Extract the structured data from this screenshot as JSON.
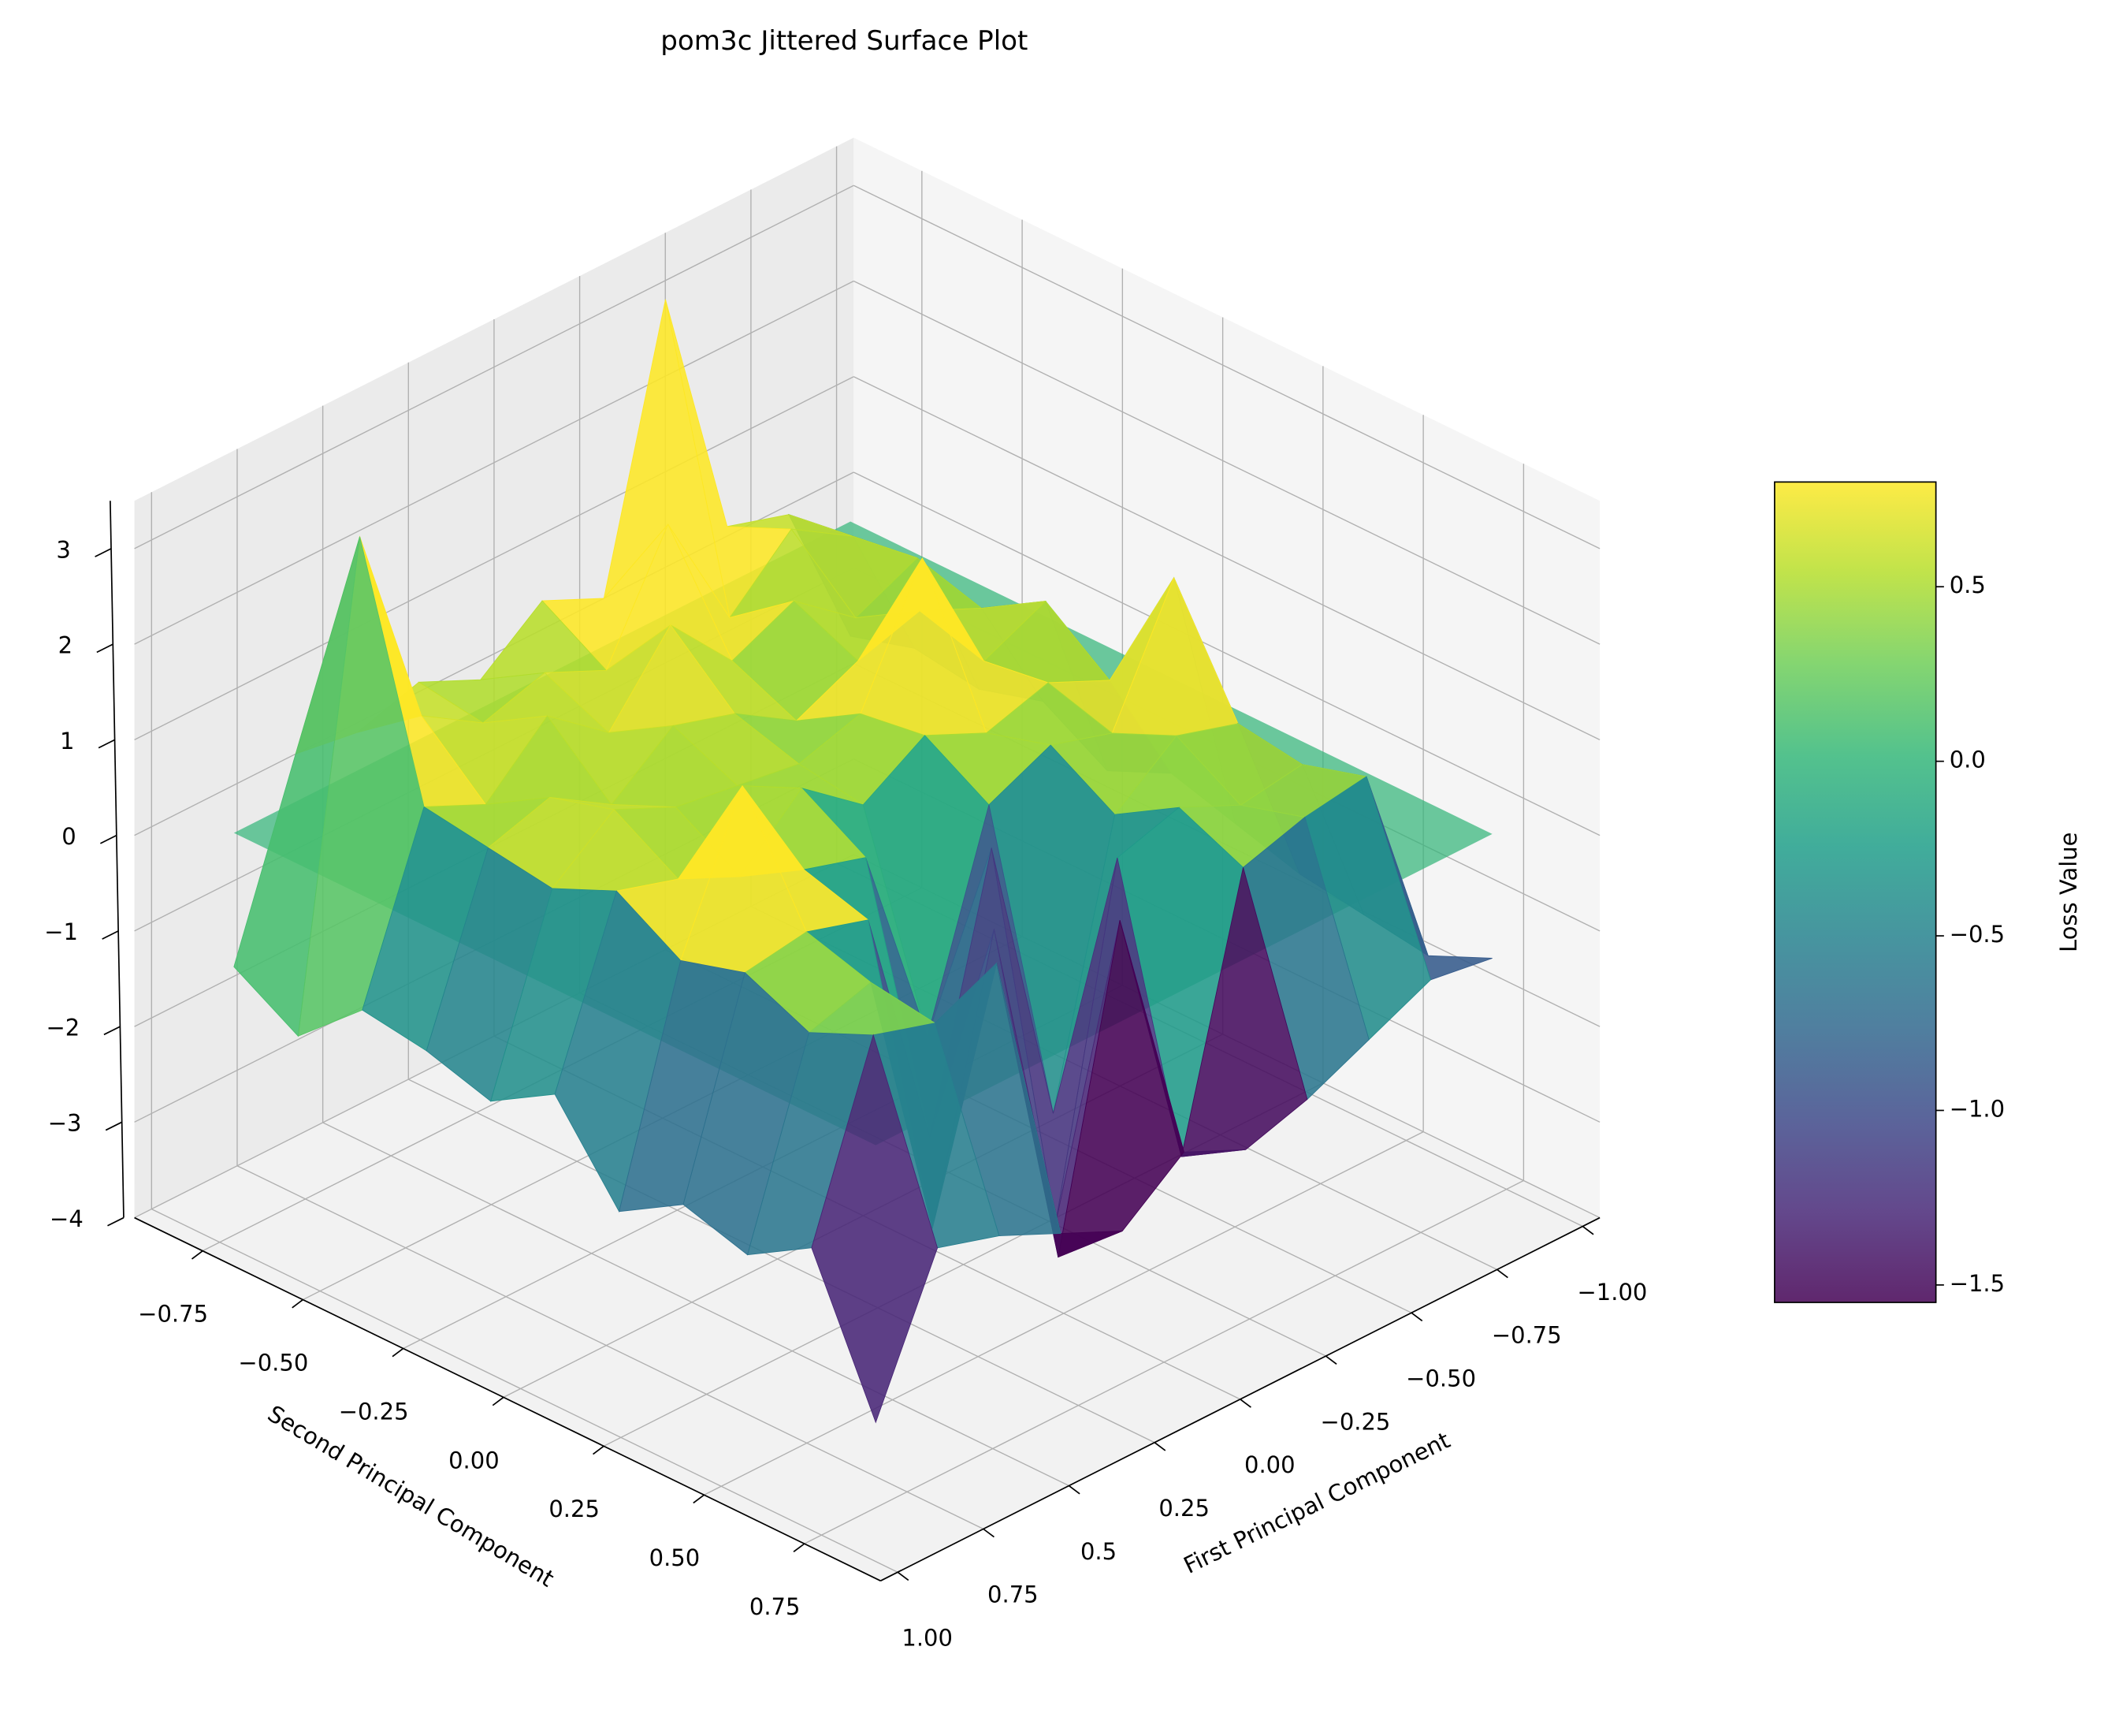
{
  "chart_data": {
    "type": "surface3d",
    "title": "pom3c Jittered Surface Plot",
    "xlabel": "First Principal Component",
    "ylabel": "Second Principal Component",
    "colorbar_label": "Loss Value",
    "x": [
      -0.9,
      -0.72,
      -0.54,
      -0.36,
      -0.18,
      0,
      0.18,
      0.36,
      0.54,
      0.72,
      0.9
    ],
    "y": [
      -0.8,
      -0.64,
      -0.48,
      -0.32,
      -0.16,
      0,
      0.16,
      0.32,
      0.48,
      0.64,
      0.8
    ],
    "z": [
      [
        -1.2,
        0.4,
        0.6,
        3.3,
        0.5,
        0.8,
        0.3,
        0.6,
        0.4,
        0.5,
        -1.4
      ],
      [
        -1.0,
        0.5,
        0.9,
        0.3,
        1.6,
        0.4,
        0.7,
        0.5,
        0.9,
        3.1,
        -1.8
      ],
      [
        -1.1,
        0.6,
        0.3,
        0.8,
        0.5,
        1.2,
        0.4,
        0.9,
        0.3,
        0.6,
        -1.2
      ],
      [
        -0.9,
        0.4,
        0.7,
        0.5,
        0.2,
        0.6,
        0.8,
        0.3,
        0.7,
        0.5,
        -1.3
      ],
      [
        -1.3,
        0.8,
        0.5,
        1.9,
        0.6,
        0.4,
        0.5,
        0.6,
        0.9,
        0.4,
        -1.5
      ],
      [
        -1.0,
        0.3,
        0.6,
        0.4,
        0.7,
        0.3,
        0.8,
        0.2,
        0.5,
        0.7,
        -1.1
      ],
      [
        -1.2,
        1.7,
        0.4,
        0.6,
        0.3,
        -1.8,
        0.4,
        0.6,
        1.8,
        0.3,
        -2.0
      ],
      [
        -1.4,
        0.5,
        0.7,
        0.2,
        -2.6,
        0.5,
        -2.2,
        0.4,
        0.6,
        0.5,
        -1.6
      ],
      [
        -1.5,
        0.4,
        0.3,
        0.6,
        0.4,
        -3.1,
        0.3,
        -2.5,
        0.4,
        0.2,
        -1.8
      ],
      [
        -1.6,
        0.6,
        0.5,
        0.3,
        -2.4,
        0.4,
        -2.8,
        0.6,
        0.3,
        0.5,
        -1.4
      ],
      [
        -1.3,
        -1.2,
        -1.5,
        -1.8,
        -2.0,
        -1.7,
        -2.2,
        -1.9,
        -1.6,
        -1.4,
        -2.9
      ]
    ],
    "reference_plane": 0,
    "colormap": "viridis",
    "xlim": [
      -1.05,
      1.05
    ],
    "ylim": [
      -0.92,
      0.94
    ],
    "zlim": [
      -4,
      3.5
    ],
    "clim": [
      -1.55,
      0.8
    ],
    "xticks": [
      {
        "value": -1,
        "label": "−1.00"
      },
      {
        "value": -0.75,
        "label": "−0.75"
      },
      {
        "value": -0.5,
        "label": "−0.50"
      },
      {
        "value": -0.25,
        "label": "−0.25"
      },
      {
        "value": 0,
        "label": "0.00"
      },
      0.25,
      0.5,
      0.75,
      {
        "value": 1,
        "label": "1.00"
      }
    ],
    "yticks": [
      {
        "value": -0.75,
        "label": "−0.75"
      },
      {
        "value": -0.5,
        "label": "−0.50"
      },
      {
        "value": -0.25,
        "label": "−0.25"
      },
      {
        "value": 0,
        "label": "0.00"
      },
      0.25,
      {
        "value": 0.5,
        "label": "0.50"
      },
      0.75
    ],
    "zticks": [
      {
        "value": -4,
        "label": "−4"
      },
      {
        "value": -3,
        "label": "−3"
      },
      {
        "value": -2,
        "label": "−2"
      },
      {
        "value": -1,
        "label": "−1"
      },
      0,
      1,
      2,
      3
    ],
    "cticks": [
      {
        "value": -1.5,
        "label": "−1.5"
      },
      {
        "value": -1,
        "label": "−1.0"
      },
      {
        "value": -0.5,
        "label": "−0.5"
      },
      {
        "value": 0,
        "label": "0.0"
      },
      0.5
    ],
    "grid": true
  }
}
